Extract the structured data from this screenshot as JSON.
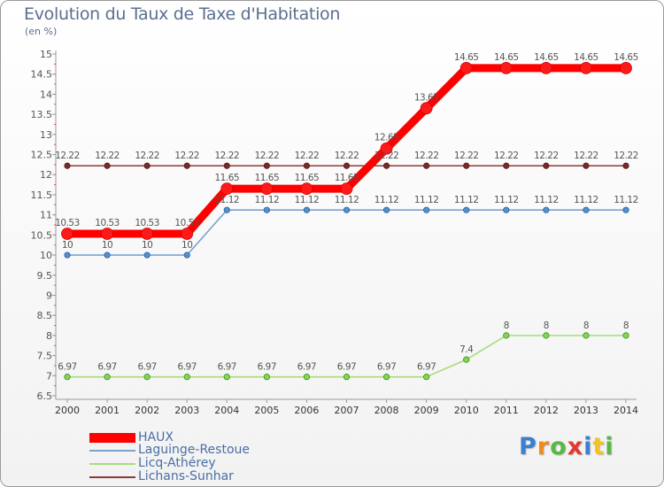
{
  "header": {
    "title": "Evolution du Taux de Taxe d'Habitation",
    "subtitle": "(en %)"
  },
  "chart_data": {
    "type": "line",
    "title": "Evolution du Taux de Taxe d'Habitation",
    "ylabel": "(en %)",
    "xlabel": "",
    "x": [
      "2000",
      "2001",
      "2002",
      "2003",
      "2004",
      "2005",
      "2006",
      "2007",
      "2008",
      "2009",
      "2010",
      "2011",
      "2012",
      "2013",
      "2014"
    ],
    "ylim": [
      6.5,
      15
    ],
    "yticks": [
      "6.5",
      "7",
      "7.5",
      "8",
      "8.5",
      "9",
      "9.5",
      "10",
      "10.5",
      "11",
      "11.5",
      "12",
      "12.5",
      "13",
      "13.5",
      "14",
      "14.5",
      "15"
    ],
    "grid": false,
    "legend_position": "bottom-left",
    "series": [
      {
        "name": "HAUX",
        "color": "#ff0000",
        "values": [
          10.53,
          10.53,
          10.53,
          10.53,
          11.65,
          11.65,
          11.65,
          11.65,
          12.65,
          13.65,
          14.65,
          14.65,
          14.65,
          14.65,
          14.65
        ],
        "labels": [
          "10.53",
          "10.53",
          "10.53",
          "10.53",
          "11.65",
          "11.65",
          "11.65",
          "11.65",
          "12.65",
          "13.65",
          "14.65",
          "14.65",
          "14.65",
          "14.65",
          "14.65"
        ]
      },
      {
        "name": "Laguinge-Restoue",
        "color": "#7ca2cf",
        "values": [
          10,
          10,
          10,
          10,
          11.12,
          11.12,
          11.12,
          11.12,
          11.12,
          11.12,
          11.12,
          11.12,
          11.12,
          11.12,
          11.12
        ],
        "labels": [
          "10",
          "10",
          "10",
          "10",
          "11.12",
          "11.12",
          "11.12",
          "11.12",
          "11.12",
          "11.12",
          "11.12",
          "11.12",
          "11.12",
          "11.12",
          "11.12"
        ]
      },
      {
        "name": "Licq-Athérey",
        "color": "#a8dc7c",
        "values": [
          6.97,
          6.97,
          6.97,
          6.97,
          6.97,
          6.97,
          6.97,
          6.97,
          6.97,
          6.97,
          7.4,
          8,
          8,
          8,
          8
        ],
        "labels": [
          "6.97",
          "6.97",
          "6.97",
          "6.97",
          "6.97",
          "6.97",
          "6.97",
          "6.97",
          "6.97",
          "6.97",
          "7.4",
          "8",
          "8",
          "8",
          "8"
        ]
      },
      {
        "name": "Lichans-Sunhar",
        "color": "#8b3a3a",
        "values": [
          12.22,
          12.22,
          12.22,
          12.22,
          12.22,
          12.22,
          12.22,
          12.22,
          12.22,
          12.22,
          12.22,
          12.22,
          12.22,
          12.22,
          12.22
        ],
        "labels": [
          "12.22",
          "12.22",
          "12.22",
          "12.22",
          "12.22",
          "12.22",
          "12.22",
          "12.22",
          "12.22",
          "12.22",
          "12.22",
          "12.22",
          "12.22",
          "12.22",
          "12.22"
        ]
      }
    ]
  },
  "legend": {
    "items": [
      {
        "label": "HAUX",
        "color": "#ff0000"
      },
      {
        "label": "Laguinge-Restoue",
        "color": "#7ca2cf"
      },
      {
        "label": "Licq-Athérey",
        "color": "#a8dc7c"
      },
      {
        "label": "Lichans-Sunhar",
        "color": "#8b3a3a"
      }
    ]
  },
  "logo": {
    "text": "Proxiti",
    "letters": [
      "P",
      "r",
      "o",
      "x",
      "i",
      "t",
      "i"
    ],
    "colors": [
      "#3b7fd0",
      "#f08a1c",
      "#58b847",
      "#e23b2e",
      "#3b7fd0",
      "#f5c222",
      "#58b847"
    ]
  }
}
